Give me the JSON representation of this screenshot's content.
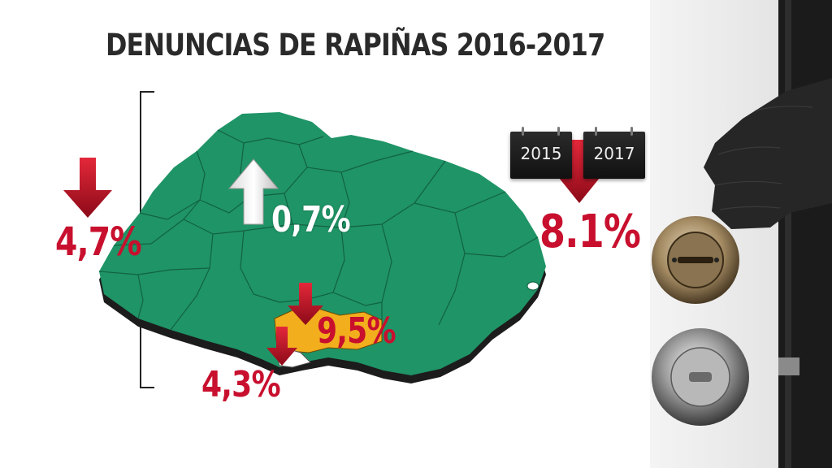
{
  "title": "DENUNCIAS DE RAPIÑAS 2016-2017",
  "stats": {
    "national": "4,7%",
    "interior": "0,7%",
    "montevideo": "9,5%",
    "canelones": "4,3%",
    "total": "8.1%"
  },
  "calendars": {
    "from": "2015",
    "to": "2017"
  },
  "colors": {
    "map_green": "#1f9466",
    "highlight_orange": "#f2ae1c",
    "decrease_red": "#c8102e",
    "increase_white": "#ffffff"
  },
  "icons": [
    "arrow-down-icon",
    "arrow-up-icon",
    "calendar-icon",
    "door-lock-icon",
    "door-knob-icon",
    "gloved-hand-icon"
  ]
}
